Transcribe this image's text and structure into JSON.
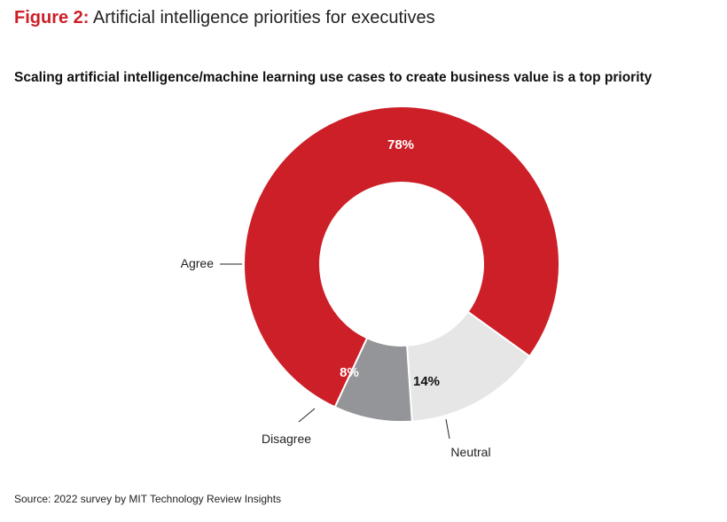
{
  "figure": {
    "label": "Figure 2:",
    "title": "Artificial intelligence priorities for executives"
  },
  "chart_data": {
    "type": "pie",
    "subtitle": "Scaling artificial intelligence/machine learning use cases to create business value is a top priority",
    "slices": [
      {
        "label": "Agree",
        "value": 78,
        "value_label": "78%",
        "color": "#cc1f27",
        "text_color": "#ffffff"
      },
      {
        "label": "Neutral",
        "value": 14,
        "value_label": "14%",
        "color": "#e6e6e6",
        "text_color": "#111111"
      },
      {
        "label": "Disagree",
        "value": 8,
        "value_label": "8%",
        "color": "#939598",
        "text_color": "#ffffff"
      }
    ],
    "donut": true,
    "legend": "callout labels"
  },
  "source": "Source: 2022 survey by MIT Technology Review Insights"
}
